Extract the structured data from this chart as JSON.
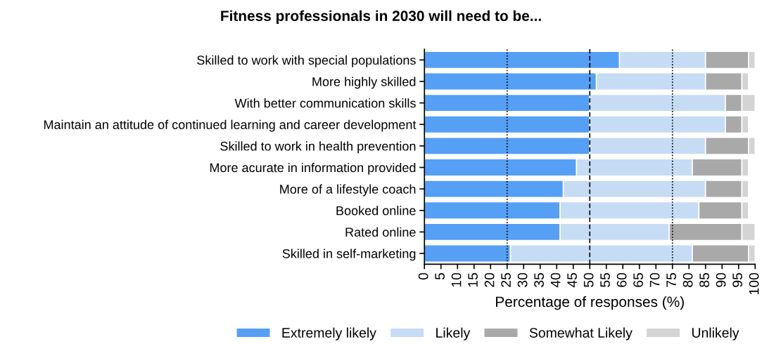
{
  "chart_data": {
    "type": "bar",
    "orientation": "horizontal",
    "stacked": true,
    "title": "Fitness professionals in 2030 will need to be...",
    "xlabel": "Percentage of responses (%)",
    "categories": [
      "Skilled to work with special populations",
      "More highly skilled",
      "With better communication skills",
      "Maintain an attitude of continued learning and career development",
      "Skilled to work in health prevention",
      "More acurate in information provided",
      "More of a lifestyle coach",
      "Booked online",
      "Rated online",
      "Skilled in self-marketing"
    ],
    "series": [
      {
        "name": "Extremely likely",
        "color": "#559ff5",
        "values": [
          59,
          52,
          50,
          50,
          50,
          46,
          42,
          41,
          41,
          26
        ]
      },
      {
        "name": "Likely",
        "color": "#c6dcf5",
        "values": [
          26,
          33,
          41,
          41,
          35,
          35,
          43,
          42,
          33,
          55
        ]
      },
      {
        "name": "Somewhat Likely",
        "color": "#a9a9a9",
        "values": [
          13,
          11,
          5,
          5,
          13,
          15,
          11,
          13,
          22,
          17
        ]
      },
      {
        "name": "Unlikely",
        "color": "#d4d4d4",
        "values": [
          2,
          2,
          4,
          2,
          2,
          2,
          2,
          2,
          4,
          2
        ]
      }
    ],
    "xlim": [
      0,
      100
    ],
    "xticks": [
      0,
      5,
      10,
      15,
      20,
      25,
      30,
      35,
      40,
      45,
      50,
      55,
      60,
      65,
      70,
      75,
      80,
      85,
      90,
      95,
      100
    ],
    "ref_lines": [
      {
        "axis": "x",
        "value": 25,
        "line_style": "dotted"
      },
      {
        "axis": "x",
        "value": 50,
        "line_style": "dashed"
      },
      {
        "axis": "x",
        "value": 75,
        "line_style": "dotted"
      }
    ],
    "legend": "bottom",
    "grid": false
  }
}
